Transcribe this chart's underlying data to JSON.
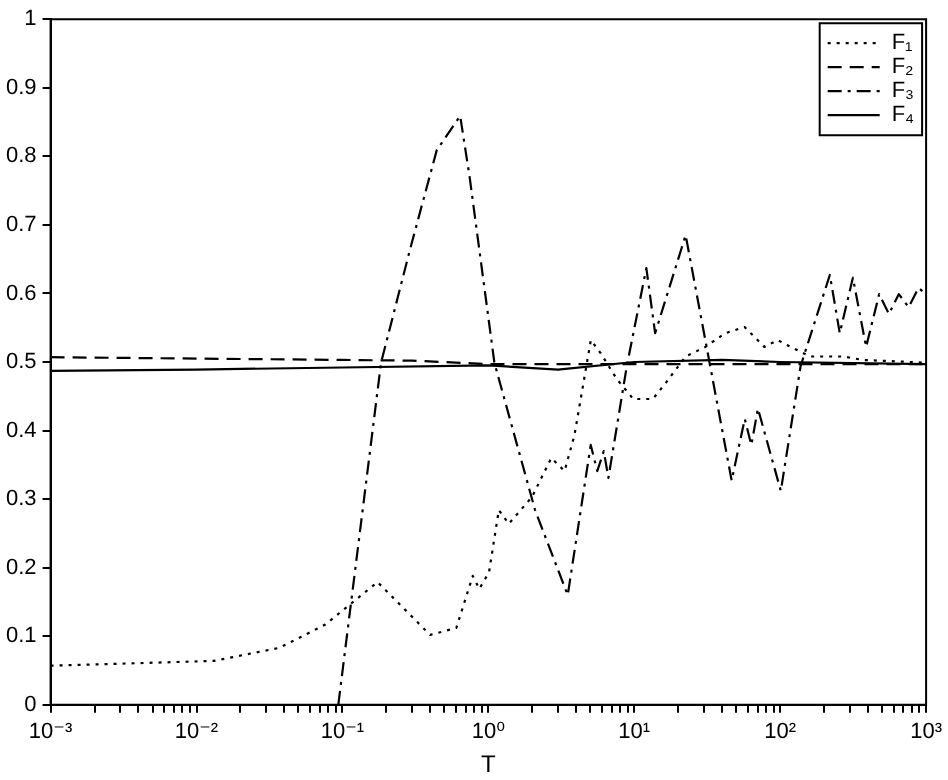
{
  "chart_data": {
    "type": "line",
    "xlabel": "T",
    "log": "x",
    "xlim": [
      0.001,
      1000
    ],
    "xticks": [
      {
        "value": 0.001,
        "label": "10⁻³"
      },
      {
        "value": 0.002,
        "label": null
      },
      {
        "value": 0.003,
        "label": null
      },
      {
        "value": 0.004,
        "label": null
      },
      {
        "value": 0.005,
        "label": null
      },
      {
        "value": 0.006,
        "label": null
      },
      {
        "value": 0.007,
        "label": null
      },
      {
        "value": 0.008,
        "label": null
      },
      {
        "value": 0.009,
        "label": null
      },
      {
        "value": 0.01,
        "label": "10⁻²"
      },
      {
        "value": 0.02,
        "label": null
      },
      {
        "value": 0.03,
        "label": null
      },
      {
        "value": 0.04,
        "label": null
      },
      {
        "value": 0.05,
        "label": null
      },
      {
        "value": 0.06,
        "label": null
      },
      {
        "value": 0.07,
        "label": null
      },
      {
        "value": 0.08,
        "label": null
      },
      {
        "value": 0.09,
        "label": null
      },
      {
        "value": 0.1,
        "label": "10⁻¹"
      },
      {
        "value": 0.2,
        "label": null
      },
      {
        "value": 0.3,
        "label": null
      },
      {
        "value": 0.4,
        "label": null
      },
      {
        "value": 0.5,
        "label": null
      },
      {
        "value": 0.6,
        "label": null
      },
      {
        "value": 0.7,
        "label": null
      },
      {
        "value": 0.8,
        "label": null
      },
      {
        "value": 0.9,
        "label": null
      },
      {
        "value": 1,
        "label": "10⁰"
      },
      {
        "value": 2,
        "label": null
      },
      {
        "value": 3,
        "label": null
      },
      {
        "value": 4,
        "label": null
      },
      {
        "value": 5,
        "label": null
      },
      {
        "value": 6,
        "label": null
      },
      {
        "value": 7,
        "label": null
      },
      {
        "value": 8,
        "label": null
      },
      {
        "value": 9,
        "label": null
      },
      {
        "value": 10,
        "label": "10¹"
      },
      {
        "value": 20,
        "label": null
      },
      {
        "value": 30,
        "label": null
      },
      {
        "value": 40,
        "label": null
      },
      {
        "value": 50,
        "label": null
      },
      {
        "value": 60,
        "label": null
      },
      {
        "value": 70,
        "label": null
      },
      {
        "value": 80,
        "label": null
      },
      {
        "value": 90,
        "label": null
      },
      {
        "value": 100,
        "label": "10²"
      },
      {
        "value": 200,
        "label": null
      },
      {
        "value": 300,
        "label": null
      },
      {
        "value": 400,
        "label": null
      },
      {
        "value": 500,
        "label": null
      },
      {
        "value": 600,
        "label": null
      },
      {
        "value": 700,
        "label": null
      },
      {
        "value": 800,
        "label": null
      },
      {
        "value": 900,
        "label": null
      },
      {
        "value": 1000,
        "label": "10³"
      }
    ],
    "ylim": [
      0,
      1
    ],
    "yticks": [
      0,
      0.1,
      0.2,
      0.3,
      0.4,
      0.5,
      0.6,
      0.7,
      0.8,
      0.9,
      1
    ],
    "grid": false,
    "legend": "top right",
    "marker": "none",
    "series": [
      {
        "name": "F₁",
        "color": "#000000",
        "line_style": "dotted",
        "x": [
          0.001,
          0.0131,
          0.0369,
          0.0763,
          0.174,
          0.399,
          0.603,
          0.782,
          0.867,
          1.01,
          1.18,
          1.38,
          1.99,
          2.7,
          3.33,
          3.89,
          5.04,
          5.88,
          7.6,
          9.85,
          13.4,
          16.5,
          22.5,
          30.7,
          42,
          57,
          78,
          96,
          118,
          161,
          270,
          368,
          1000
        ],
        "values": [
          0.057,
          0.064,
          0.083,
          0.117,
          0.179,
          0.102,
          0.112,
          0.188,
          0.169,
          0.193,
          0.284,
          0.264,
          0.303,
          0.36,
          0.341,
          0.393,
          0.532,
          0.513,
          0.475,
          0.446,
          0.446,
          0.47,
          0.508,
          0.522,
          0.542,
          0.551,
          0.522,
          0.532,
          0.522,
          0.508,
          0.508,
          0.503,
          0.499
        ]
      },
      {
        "name": "F₂",
        "color": "#000000",
        "line_style": "dashed",
        "x": [
          0.001,
          0.01,
          0.1,
          0.3,
          1,
          10,
          100,
          1000
        ],
        "values": [
          0.507,
          0.505,
          0.503,
          0.502,
          0.497,
          0.497,
          0.497,
          0.497
        ]
      },
      {
        "name": "F₃",
        "color": "#000000",
        "line_style": "dashdot",
        "x": [
          0.0937,
          0.184,
          0.292,
          0.443,
          0.641,
          0.743,
          1.1,
          2.09,
          3.5,
          5.03,
          5.58,
          6.18,
          6.65,
          8.89,
          12.1,
          13.9,
          22.5,
          46.5,
          57.2,
          63.4,
          70.4,
          101,
          138,
          219,
          256,
          315,
          388,
          477,
          556,
          650,
          759,
          887,
          1000
        ],
        "values": [
          0,
          0.499,
          0.666,
          0.809,
          0.859,
          0.771,
          0.499,
          0.284,
          0.16,
          0.379,
          0.341,
          0.37,
          0.331,
          0.494,
          0.637,
          0.542,
          0.685,
          0.327,
          0.417,
          0.379,
          0.432,
          0.312,
          0.494,
          0.627,
          0.542,
          0.623,
          0.522,
          0.599,
          0.57,
          0.599,
          0.58,
          0.608,
          0.599
        ]
      },
      {
        "name": "F₄",
        "color": "#000000",
        "line_style": "solid",
        "x": [
          0.001,
          0.01,
          0.1,
          1,
          3,
          10,
          40,
          100,
          1000
        ],
        "values": [
          0.487,
          0.489,
          0.492,
          0.495,
          0.489,
          0.5,
          0.503,
          0.5,
          0.497
        ]
      }
    ]
  }
}
